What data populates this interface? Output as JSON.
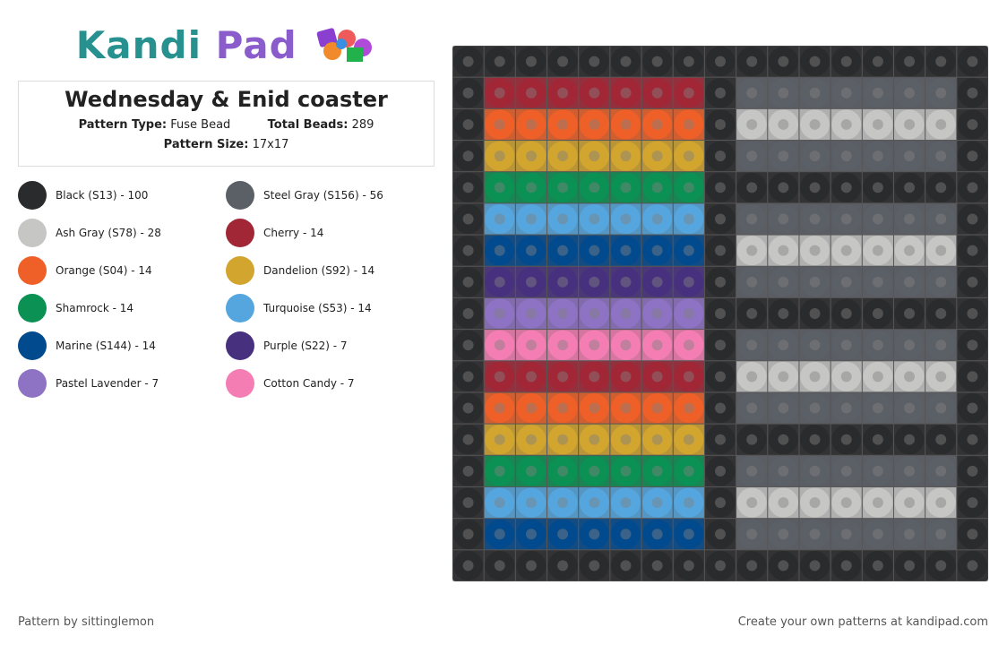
{
  "logo": {
    "left": "Kandi",
    "right": "Pad"
  },
  "header": {
    "title": "Wednesday & Enid coaster",
    "pattern_type": {
      "label": "Pattern Type:",
      "value": "Fuse Bead"
    },
    "total_beads": {
      "label": "Total Beads:",
      "value": "289"
    },
    "pattern_size": {
      "label": "Pattern Size:",
      "value": "17x17"
    }
  },
  "palette": [
    {
      "label": "Black (S13) - 100",
      "color": "#2a2b2d"
    },
    {
      "label": "Steel Gray (S156) - 56",
      "color": "#5b5f66"
    },
    {
      "label": "Ash Gray (S78) - 28",
      "color": "#c6c7c5"
    },
    {
      "label": "Cherry - 14",
      "color": "#a12737"
    },
    {
      "label": "Orange (S04) - 14",
      "color": "#ee6027"
    },
    {
      "label": "Dandelion (S92) - 14",
      "color": "#d2a52f"
    },
    {
      "label": "Shamrock - 14",
      "color": "#0a9153"
    },
    {
      "label": "Turquoise (S53) - 14",
      "color": "#55a6de"
    },
    {
      "label": "Marine (S144) - 14",
      "color": "#024a8e"
    },
    {
      "label": "Purple (S22) - 7",
      "color": "#47317f"
    },
    {
      "label": "Pastel Lavender - 7",
      "color": "#8e72c4"
    },
    {
      "label": "Cotton Candy - 7",
      "color": "#f47eb3"
    }
  ],
  "grid": [
    [
      0,
      0,
      0,
      0,
      0,
      0,
      0,
      0,
      0,
      0,
      0,
      0,
      0,
      0,
      0,
      0,
      0
    ],
    [
      0,
      3,
      3,
      3,
      3,
      3,
      3,
      3,
      0,
      1,
      1,
      1,
      1,
      1,
      1,
      1,
      0
    ],
    [
      0,
      4,
      4,
      4,
      4,
      4,
      4,
      4,
      0,
      2,
      2,
      2,
      2,
      2,
      2,
      2,
      0
    ],
    [
      0,
      5,
      5,
      5,
      5,
      5,
      5,
      5,
      0,
      1,
      1,
      1,
      1,
      1,
      1,
      1,
      0
    ],
    [
      0,
      6,
      6,
      6,
      6,
      6,
      6,
      6,
      0,
      0,
      0,
      0,
      0,
      0,
      0,
      0,
      0
    ],
    [
      0,
      7,
      7,
      7,
      7,
      7,
      7,
      7,
      0,
      1,
      1,
      1,
      1,
      1,
      1,
      1,
      0
    ],
    [
      0,
      8,
      8,
      8,
      8,
      8,
      8,
      8,
      0,
      2,
      2,
      2,
      2,
      2,
      2,
      2,
      0
    ],
    [
      0,
      9,
      9,
      9,
      9,
      9,
      9,
      9,
      0,
      1,
      1,
      1,
      1,
      1,
      1,
      1,
      0
    ],
    [
      0,
      10,
      10,
      10,
      10,
      10,
      10,
      10,
      0,
      0,
      0,
      0,
      0,
      0,
      0,
      0,
      0
    ],
    [
      0,
      11,
      11,
      11,
      11,
      11,
      11,
      11,
      0,
      1,
      1,
      1,
      1,
      1,
      1,
      1,
      0
    ],
    [
      0,
      3,
      3,
      3,
      3,
      3,
      3,
      3,
      0,
      2,
      2,
      2,
      2,
      2,
      2,
      2,
      0
    ],
    [
      0,
      4,
      4,
      4,
      4,
      4,
      4,
      4,
      0,
      1,
      1,
      1,
      1,
      1,
      1,
      1,
      0
    ],
    [
      0,
      5,
      5,
      5,
      5,
      5,
      5,
      5,
      0,
      0,
      0,
      0,
      0,
      0,
      0,
      0,
      0
    ],
    [
      0,
      6,
      6,
      6,
      6,
      6,
      6,
      6,
      0,
      1,
      1,
      1,
      1,
      1,
      1,
      1,
      0
    ],
    [
      0,
      7,
      7,
      7,
      7,
      7,
      7,
      7,
      0,
      2,
      2,
      2,
      2,
      2,
      2,
      2,
      0
    ],
    [
      0,
      8,
      8,
      8,
      8,
      8,
      8,
      8,
      0,
      1,
      1,
      1,
      1,
      1,
      1,
      1,
      0
    ],
    [
      0,
      0,
      0,
      0,
      0,
      0,
      0,
      0,
      0,
      0,
      0,
      0,
      0,
      0,
      0,
      0,
      0
    ]
  ],
  "footer": {
    "credit": "Pattern by sittinglemon",
    "promo": "Create your own patterns at kandipad.com"
  }
}
